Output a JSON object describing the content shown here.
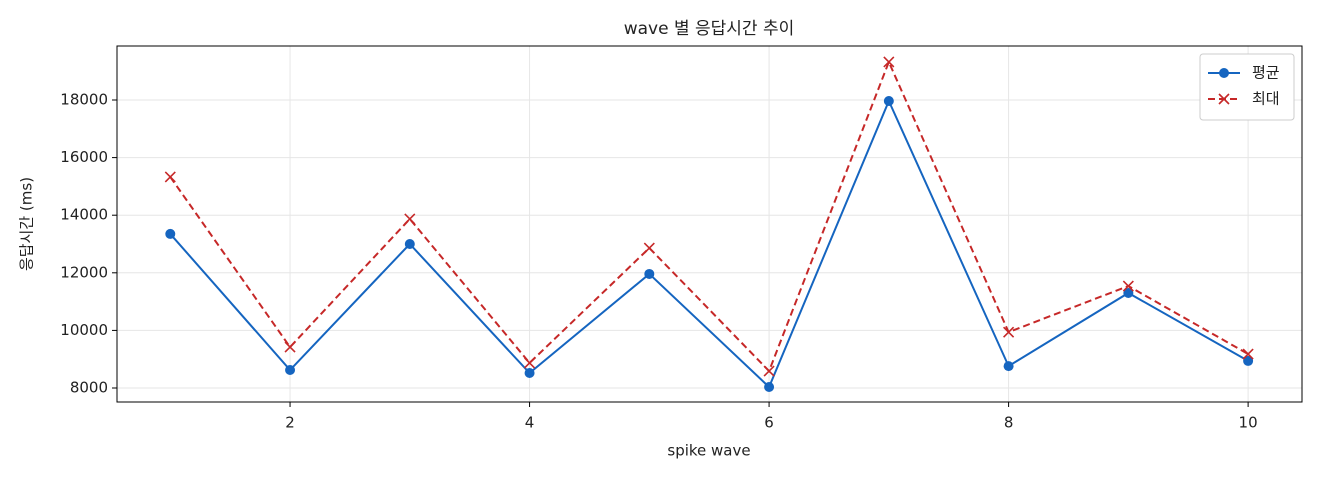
{
  "chart_data": {
    "type": "line",
    "title": "wave 별 응답시간 추이",
    "xlabel": "spike wave",
    "ylabel": "응답시간 (ms)",
    "x": [
      1,
      2,
      3,
      4,
      5,
      6,
      7,
      8,
      9,
      10
    ],
    "series": [
      {
        "name": "평균",
        "color": "#1565c0",
        "marker": "o",
        "linestyle": "solid",
        "values": [
          13350,
          8625,
          13000,
          8520,
          11960,
          8035,
          17965,
          8760,
          11300,
          8940
        ]
      },
      {
        "name": "최대",
        "color": "#c62828",
        "marker": "x",
        "linestyle": "dashed",
        "values": [
          15330,
          9420,
          13870,
          8870,
          12860,
          8590,
          19320,
          9940,
          11540,
          9180
        ]
      }
    ],
    "xlim": [
      0.555,
      10.45
    ],
    "xticks": [
      2,
      4,
      6,
      8,
      10
    ],
    "ylim": [
      7514,
      19875
    ],
    "yticks": [
      8000,
      10000,
      12000,
      14000,
      16000,
      18000
    ],
    "grid": true,
    "legend": "upper right"
  }
}
